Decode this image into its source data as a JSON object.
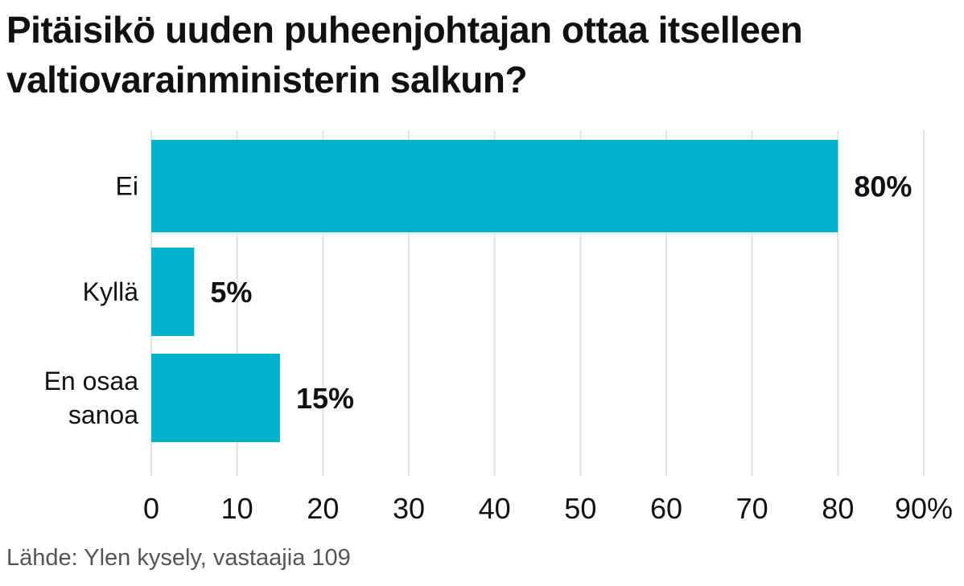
{
  "chart_data": {
    "type": "bar",
    "orientation": "horizontal",
    "title": "Pitäisikö uuden puheenjohtajan ottaa itselleen valtiovarainministerin salkun?",
    "categories": [
      [
        "Ei"
      ],
      [
        "Kyllä"
      ],
      [
        "En osaa",
        "sanoa"
      ]
    ],
    "values": [
      80,
      5,
      15
    ],
    "data_labels": [
      "80%",
      "5%",
      "15%"
    ],
    "xlim": [
      0,
      90
    ],
    "xticks": [
      0,
      10,
      20,
      30,
      40,
      50,
      60,
      70,
      80,
      90
    ],
    "xtick_labels": [
      "0",
      "10",
      "20",
      "30",
      "40",
      "50",
      "60",
      "70",
      "80",
      "90%"
    ],
    "xlabel": "",
    "ylabel": "",
    "grid": "vertical",
    "bar_color": "#00b2c9",
    "grid_color": "#e3e3e3",
    "source": "Lähde: Ylen kysely, vastaajia 109"
  }
}
